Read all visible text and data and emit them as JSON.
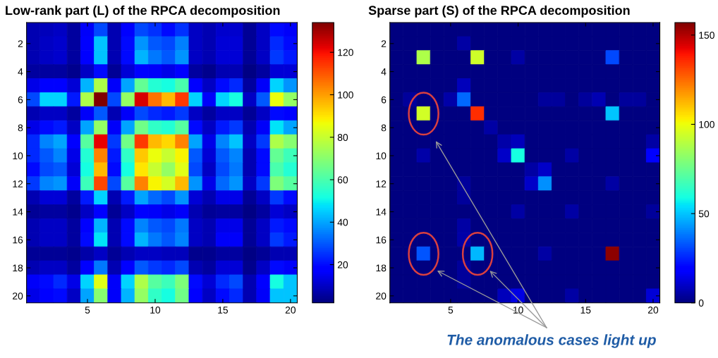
{
  "chart_data": [
    {
      "type": "heatmap",
      "title": "Low-rank part (L) of the RPCA decomposition",
      "categories": [
        null,
        null,
        null,
        null,
        "5",
        null,
        null,
        null,
        null,
        "10",
        null,
        null,
        null,
        null,
        "15",
        null,
        null,
        null,
        null,
        "20"
      ],
      "y_categories": [
        null,
        "2",
        null,
        "4",
        null,
        "6",
        null,
        "8",
        null,
        "10",
        null,
        "12",
        null,
        "14",
        null,
        "16",
        null,
        "18",
        null,
        "20"
      ],
      "clim": [
        2,
        134
      ],
      "cticks": [
        20,
        40,
        60,
        80,
        100,
        120
      ],
      "cells": [
        [
          8,
          9,
          10,
          6,
          16,
          28,
          8,
          18,
          28,
          25,
          20,
          25,
          10,
          8,
          11,
          11,
          5,
          10,
          20,
          16
        ],
        [
          8,
          10,
          11,
          6,
          18,
          44,
          8,
          20,
          38,
          30,
          28,
          35,
          10,
          8,
          12,
          12,
          5,
          10,
          24,
          20
        ],
        [
          8,
          10,
          11,
          6,
          18,
          44,
          8,
          20,
          42,
          34,
          30,
          38,
          10,
          8,
          12,
          12,
          5,
          10,
          26,
          22
        ],
        [
          6,
          6,
          6,
          4,
          10,
          20,
          5,
          12,
          18,
          16,
          14,
          18,
          6,
          4,
          8,
          8,
          3,
          6,
          12,
          12
        ],
        [
          14,
          18,
          18,
          12,
          42,
          76,
          16,
          40,
          64,
          54,
          52,
          60,
          18,
          10,
          20,
          24,
          6,
          16,
          46,
          38
        ],
        [
          28,
          46,
          46,
          22,
          76,
          134,
          28,
          72,
          124,
          106,
          96,
          114,
          46,
          16,
          46,
          52,
          10,
          30,
          86,
          72
        ],
        [
          8,
          10,
          10,
          6,
          16,
          30,
          8,
          16,
          28,
          24,
          22,
          26,
          10,
          6,
          10,
          10,
          5,
          10,
          20,
          18
        ],
        [
          14,
          20,
          22,
          10,
          40,
          72,
          16,
          40,
          66,
          56,
          54,
          62,
          20,
          10,
          22,
          26,
          8,
          16,
          48,
          40
        ],
        [
          24,
          36,
          40,
          18,
          62,
          122,
          26,
          66,
          114,
          96,
          92,
          104,
          40,
          14,
          36,
          44,
          10,
          26,
          76,
          70
        ],
        [
          24,
          30,
          36,
          14,
          54,
          104,
          22,
          56,
          94,
          86,
          80,
          88,
          30,
          12,
          30,
          36,
          8,
          20,
          64,
          58
        ],
        [
          20,
          28,
          30,
          12,
          52,
          96,
          20,
          52,
          90,
          80,
          72,
          84,
          28,
          10,
          28,
          34,
          8,
          20,
          60,
          54
        ],
        [
          26,
          36,
          38,
          16,
          58,
          112,
          28,
          62,
          104,
          88,
          82,
          96,
          38,
          14,
          32,
          38,
          10,
          26,
          68,
          62
        ],
        [
          8,
          12,
          12,
          6,
          22,
          46,
          8,
          22,
          40,
          32,
          28,
          38,
          12,
          8,
          14,
          14,
          5,
          10,
          26,
          20
        ],
        [
          5,
          6,
          6,
          4,
          10,
          18,
          5,
          10,
          18,
          16,
          14,
          16,
          8,
          5,
          6,
          6,
          3,
          6,
          12,
          10
        ],
        [
          8,
          10,
          10,
          6,
          18,
          42,
          8,
          20,
          36,
          30,
          28,
          34,
          10,
          8,
          14,
          14,
          5,
          10,
          22,
          20
        ],
        [
          8,
          10,
          10,
          6,
          20,
          48,
          8,
          20,
          42,
          34,
          30,
          36,
          10,
          8,
          16,
          16,
          5,
          10,
          26,
          22
        ],
        [
          5,
          5,
          5,
          4,
          7,
          10,
          5,
          8,
          10,
          10,
          9,
          9,
          4,
          4,
          6,
          6,
          3,
          5,
          8,
          8
        ],
        [
          8,
          10,
          10,
          6,
          18,
          34,
          8,
          18,
          30,
          26,
          24,
          28,
          8,
          6,
          12,
          12,
          4,
          10,
          20,
          16
        ],
        [
          16,
          20,
          24,
          14,
          46,
          84,
          16,
          46,
          76,
          62,
          58,
          68,
          20,
          12,
          24,
          28,
          8,
          18,
          52,
          44
        ],
        [
          14,
          18,
          20,
          10,
          40,
          70,
          16,
          42,
          72,
          56,
          52,
          66,
          18,
          10,
          20,
          24,
          8,
          16,
          44,
          44
        ]
      ]
    },
    {
      "type": "heatmap",
      "title": "Sparse part (S) of the RPCA decomposition",
      "categories": [
        null,
        null,
        null,
        null,
        "5",
        null,
        null,
        null,
        null,
        "10",
        null,
        null,
        null,
        null,
        "15",
        null,
        null,
        null,
        null,
        "20"
      ],
      "y_categories": [
        null,
        "2",
        null,
        "4",
        null,
        "6",
        null,
        "8",
        null,
        "10",
        null,
        "12",
        null,
        "14",
        null,
        "16",
        null,
        "18",
        null,
        "20"
      ],
      "clim": [
        0,
        157
      ],
      "cticks": [
        0,
        50,
        100,
        150
      ],
      "annotations": [
        "The anomalous cases light up"
      ],
      "cells": [
        [
          0,
          0,
          0,
          0,
          0,
          0,
          0,
          0,
          0,
          0,
          0,
          0,
          0,
          0,
          0,
          0,
          0,
          0,
          0,
          0
        ],
        [
          0,
          0,
          0,
          0,
          0,
          5,
          0,
          0,
          0,
          0,
          0,
          0,
          0,
          0,
          0,
          0,
          0,
          0,
          0,
          0
        ],
        [
          0,
          0,
          88,
          0,
          0,
          0,
          94,
          0,
          0,
          5,
          0,
          0,
          0,
          0,
          0,
          0,
          31,
          0,
          0,
          0
        ],
        [
          0,
          0,
          0,
          0,
          0,
          0,
          0,
          0,
          0,
          0,
          0,
          0,
          0,
          0,
          0,
          0,
          0,
          0,
          0,
          0
        ],
        [
          0,
          0,
          0,
          0,
          0,
          8,
          0,
          0,
          0,
          0,
          0,
          0,
          0,
          0,
          0,
          0,
          0,
          0,
          0,
          0
        ],
        [
          0,
          4,
          0,
          0,
          6,
          36,
          0,
          0,
          0,
          0,
          0,
          4,
          4,
          0,
          4,
          7,
          0,
          4,
          4,
          0
        ],
        [
          0,
          0,
          95,
          0,
          0,
          0,
          135,
          0,
          0,
          0,
          0,
          0,
          0,
          0,
          0,
          0,
          50,
          0,
          0,
          0
        ],
        [
          0,
          0,
          0,
          0,
          0,
          0,
          0,
          5,
          0,
          0,
          0,
          0,
          0,
          0,
          0,
          0,
          0,
          0,
          0,
          0
        ],
        [
          0,
          0,
          0,
          0,
          0,
          0,
          0,
          0,
          6,
          8,
          0,
          0,
          0,
          0,
          0,
          0,
          0,
          0,
          0,
          5
        ],
        [
          0,
          0,
          6,
          0,
          0,
          0,
          0,
          0,
          10,
          59,
          0,
          0,
          0,
          5,
          0,
          0,
          0,
          0,
          0,
          20
        ],
        [
          0,
          0,
          0,
          0,
          0,
          0,
          0,
          0,
          0,
          0,
          5,
          10,
          0,
          0,
          0,
          0,
          0,
          0,
          0,
          0
        ],
        [
          0,
          0,
          0,
          0,
          0,
          4,
          0,
          0,
          0,
          0,
          10,
          42,
          0,
          0,
          0,
          0,
          5,
          0,
          0,
          0
        ],
        [
          0,
          0,
          0,
          0,
          0,
          4,
          0,
          0,
          0,
          0,
          0,
          0,
          0,
          0,
          0,
          0,
          0,
          0,
          0,
          0
        ],
        [
          0,
          0,
          0,
          0,
          0,
          0,
          0,
          0,
          0,
          5,
          0,
          0,
          0,
          5,
          0,
          0,
          0,
          0,
          0,
          4
        ],
        [
          0,
          0,
          0,
          0,
          0,
          5,
          0,
          0,
          0,
          0,
          0,
          0,
          0,
          0,
          0,
          0,
          0,
          0,
          0,
          0
        ],
        [
          0,
          0,
          0,
          0,
          0,
          6,
          0,
          0,
          0,
          0,
          0,
          0,
          0,
          0,
          0,
          0,
          0,
          0,
          0,
          0
        ],
        [
          0,
          0,
          33,
          0,
          0,
          0,
          48,
          0,
          0,
          0,
          0,
          5,
          0,
          0,
          0,
          0,
          155,
          0,
          0,
          0
        ],
        [
          0,
          0,
          0,
          0,
          0,
          4,
          0,
          0,
          0,
          0,
          0,
          0,
          0,
          0,
          0,
          0,
          0,
          0,
          0,
          0
        ],
        [
          0,
          0,
          0,
          0,
          0,
          4,
          0,
          0,
          0,
          0,
          0,
          0,
          0,
          0,
          0,
          0,
          0,
          0,
          0,
          0
        ],
        [
          0,
          0,
          0,
          0,
          0,
          0,
          0,
          0,
          8,
          14,
          0,
          0,
          0,
          5,
          0,
          0,
          0,
          0,
          0,
          12
        ]
      ]
    }
  ]
}
